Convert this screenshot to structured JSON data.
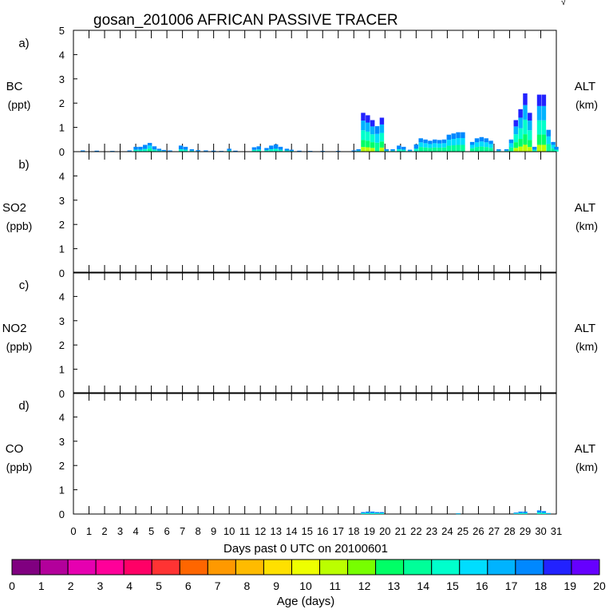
{
  "chart_data": {
    "type": "bar",
    "title": "gosan_201006 AFRICAN PASSIVE TRACER",
    "xlabel": "Days past 0 UTC on 20100601",
    "x_ticks": [
      "0",
      "1",
      "2",
      "3",
      "4",
      "5",
      "6",
      "7",
      "8",
      "9",
      "10",
      "11",
      "12",
      "13",
      "14",
      "15",
      "16",
      "17",
      "18",
      "19",
      "20",
      "21",
      "22",
      "23",
      "24",
      "25",
      "26",
      "27",
      "28",
      "29",
      "30",
      "31"
    ],
    "xlim": [
      0,
      31
    ],
    "y_ticks": [
      "0",
      "1",
      "2",
      "3",
      "4",
      "5"
    ],
    "ylim": [
      0,
      5
    ],
    "panels": [
      {
        "letter": "a)",
        "species": "BC",
        "units": "(ppt)",
        "right_label": "ALT",
        "right_units": "(km)",
        "top_tick": "5",
        "bars": [
          {
            "x": 0.6,
            "y": 0.05
          },
          {
            "x": 1.5,
            "y": 0.04
          },
          {
            "x": 2.5,
            "y": 0.03
          },
          {
            "x": 3.6,
            "y": 0.05
          },
          {
            "x": 4.0,
            "y": 0.2
          },
          {
            "x": 4.3,
            "y": 0.2
          },
          {
            "x": 4.6,
            "y": 0.28
          },
          {
            "x": 4.9,
            "y": 0.36
          },
          {
            "x": 5.2,
            "y": 0.22
          },
          {
            "x": 5.5,
            "y": 0.12
          },
          {
            "x": 5.8,
            "y": 0.07
          },
          {
            "x": 6.2,
            "y": 0.05
          },
          {
            "x": 6.9,
            "y": 0.25
          },
          {
            "x": 7.2,
            "y": 0.2
          },
          {
            "x": 7.6,
            "y": 0.1
          },
          {
            "x": 8.0,
            "y": 0.06
          },
          {
            "x": 8.5,
            "y": 0.05
          },
          {
            "x": 9.0,
            "y": 0.04
          },
          {
            "x": 9.5,
            "y": 0.03
          },
          {
            "x": 10.0,
            "y": 0.12
          },
          {
            "x": 10.4,
            "y": 0.04
          },
          {
            "x": 11.6,
            "y": 0.18
          },
          {
            "x": 11.9,
            "y": 0.22
          },
          {
            "x": 12.4,
            "y": 0.15
          },
          {
            "x": 12.7,
            "y": 0.25
          },
          {
            "x": 13.0,
            "y": 0.3
          },
          {
            "x": 13.3,
            "y": 0.2
          },
          {
            "x": 13.7,
            "y": 0.12
          },
          {
            "x": 14.0,
            "y": 0.08
          },
          {
            "x": 14.5,
            "y": 0.04
          },
          {
            "x": 15.2,
            "y": 0.03
          },
          {
            "x": 16.0,
            "y": 0.03
          },
          {
            "x": 17.0,
            "y": 0.03
          },
          {
            "x": 18.0,
            "y": 0.05
          },
          {
            "x": 18.3,
            "y": 0.1
          },
          {
            "x": 18.6,
            "y": 1.6
          },
          {
            "x": 18.9,
            "y": 1.5
          },
          {
            "x": 19.2,
            "y": 1.3
          },
          {
            "x": 19.5,
            "y": 1.05
          },
          {
            "x": 19.8,
            "y": 1.4
          },
          {
            "x": 20.1,
            "y": 0.1
          },
          {
            "x": 20.5,
            "y": 0.1
          },
          {
            "x": 20.9,
            "y": 0.25
          },
          {
            "x": 21.2,
            "y": 0.2
          },
          {
            "x": 21.6,
            "y": 0.08
          },
          {
            "x": 22.0,
            "y": 0.3
          },
          {
            "x": 22.3,
            "y": 0.55
          },
          {
            "x": 22.6,
            "y": 0.5
          },
          {
            "x": 22.9,
            "y": 0.45
          },
          {
            "x": 23.2,
            "y": 0.5
          },
          {
            "x": 23.5,
            "y": 0.48
          },
          {
            "x": 23.8,
            "y": 0.5
          },
          {
            "x": 24.1,
            "y": 0.7
          },
          {
            "x": 24.4,
            "y": 0.75
          },
          {
            "x": 24.7,
            "y": 0.8
          },
          {
            "x": 25.0,
            "y": 0.8
          },
          {
            "x": 25.6,
            "y": 0.4
          },
          {
            "x": 25.9,
            "y": 0.55
          },
          {
            "x": 26.2,
            "y": 0.6
          },
          {
            "x": 26.5,
            "y": 0.55
          },
          {
            "x": 26.8,
            "y": 0.45
          },
          {
            "x": 27.3,
            "y": 0.1
          },
          {
            "x": 27.8,
            "y": 0.1
          },
          {
            "x": 28.1,
            "y": 0.5
          },
          {
            "x": 28.4,
            "y": 1.3
          },
          {
            "x": 28.7,
            "y": 1.75
          },
          {
            "x": 29.0,
            "y": 2.4
          },
          {
            "x": 29.3,
            "y": 1.6
          },
          {
            "x": 29.6,
            "y": 0.2
          },
          {
            "x": 29.9,
            "y": 2.35
          },
          {
            "x": 30.2,
            "y": 2.35
          },
          {
            "x": 30.5,
            "y": 0.9
          },
          {
            "x": 30.8,
            "y": 0.4
          },
          {
            "x": 31.0,
            "y": 0.2
          }
        ]
      },
      {
        "letter": "b)",
        "species": "SO2",
        "units": "(ppb)",
        "right_label": "ALT",
        "right_units": "(km)",
        "top_tick": "",
        "bars": []
      },
      {
        "letter": "c)",
        "species": "NO2",
        "units": "(ppb)",
        "right_label": "ALT",
        "right_units": "(km)",
        "top_tick": "",
        "bars": []
      },
      {
        "letter": "d)",
        "species": "CO",
        "units": "(ppb)",
        "right_label": "ALT",
        "right_units": "(km)",
        "top_tick": "",
        "bars": [
          {
            "x": 18.6,
            "y": 0.08
          },
          {
            "x": 18.9,
            "y": 0.1
          },
          {
            "x": 19.2,
            "y": 0.1
          },
          {
            "x": 19.5,
            "y": 0.08
          },
          {
            "x": 19.8,
            "y": 0.08
          },
          {
            "x": 24.7,
            "y": 0.03
          },
          {
            "x": 28.4,
            "y": 0.06
          },
          {
            "x": 28.7,
            "y": 0.1
          },
          {
            "x": 29.0,
            "y": 0.1
          },
          {
            "x": 29.9,
            "y": 0.15
          },
          {
            "x": 30.2,
            "y": 0.12
          },
          {
            "x": 30.5,
            "y": 0.04
          }
        ]
      }
    ],
    "colorbar": {
      "label": "Age (days)",
      "tick_labels": [
        "0",
        "1",
        "2",
        "3",
        "4",
        "5",
        "6",
        "7",
        "8",
        "9",
        "10",
        "11",
        "12",
        "13",
        "14",
        "15",
        "16",
        "17",
        "18",
        "19",
        "20"
      ],
      "colors": [
        "#800080",
        "#b3009b",
        "#e600b0",
        "#ff0099",
        "#ff0066",
        "#ff3333",
        "#ff6600",
        "#ff9900",
        "#ffbb00",
        "#ffe000",
        "#eeff00",
        "#bbff00",
        "#77ff00",
        "#00ff66",
        "#00ff99",
        "#00ffcc",
        "#00ddff",
        "#00b3ff",
        "#0088ff",
        "#2222ff",
        "#6600ff"
      ]
    }
  },
  "corner_mark": "√"
}
